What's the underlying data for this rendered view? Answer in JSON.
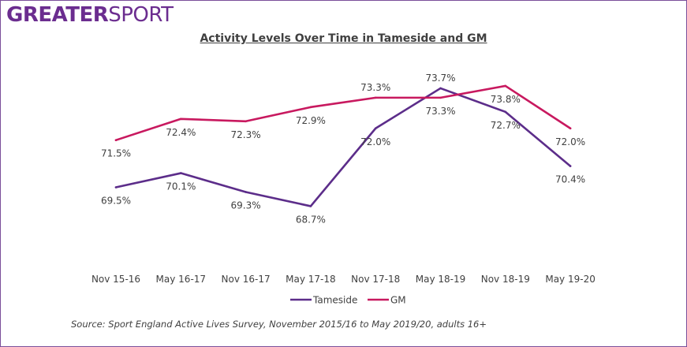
{
  "logo": {
    "part1": "GREATER",
    "part2": "SPORT"
  },
  "chart_data": {
    "type": "line",
    "title": "Activity Levels Over Time in Tameside and GM",
    "categories": [
      "Nov 15-16",
      "May 16-17",
      "Nov 16-17",
      "May 17-18",
      "Nov 17-18",
      "May 18-19",
      "Nov 18-19",
      "May 19-20"
    ],
    "series": [
      {
        "name": "Tameside",
        "color": "#5c2d8a",
        "values": [
          69.5,
          70.1,
          69.3,
          68.7,
          72.0,
          73.7,
          72.7,
          70.4
        ]
      },
      {
        "name": "GM",
        "color": "#c8195f",
        "values": [
          71.5,
          72.4,
          72.3,
          72.9,
          73.3,
          73.3,
          73.8,
          72.0
        ]
      }
    ],
    "data_labels": [
      [
        "69.5%",
        "70.1%",
        "69.3%",
        "68.7%",
        "72.0%",
        "73.7%",
        "72.7%",
        "70.4%"
      ],
      [
        "71.5%",
        "72.4%",
        "72.3%",
        "72.9%",
        "73.3%",
        "73.3%",
        "73.8%",
        "72.0%"
      ]
    ],
    "label_position": [
      [
        "below",
        "below",
        "below",
        "below",
        "below",
        "above",
        "below",
        "below"
      ],
      [
        "below",
        "below",
        "below",
        "below",
        "above",
        "below",
        "below",
        "below"
      ]
    ],
    "grid": false,
    "legend": "bottom"
  },
  "source": "Source: Sport England Active Lives Survey, November 2015/16 to May 2019/20, adults 16+"
}
